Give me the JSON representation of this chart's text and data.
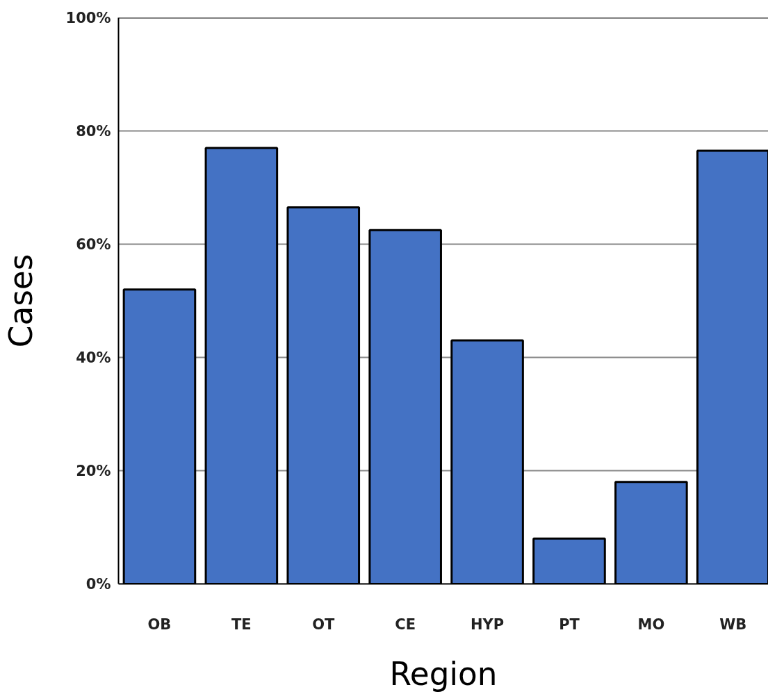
{
  "chart_data": {
    "type": "bar",
    "xlabel": "Region",
    "ylabel": "Cases",
    "categories": [
      "OB",
      "TE",
      "OT",
      "CE",
      "HYP",
      "PT",
      "MO",
      "WB"
    ],
    "values": [
      52,
      77,
      66.5,
      62.5,
      43,
      8,
      18,
      76.5
    ],
    "color": "#4472c4",
    "ylim": [
      0,
      100
    ],
    "yticks": [
      {
        "value": 0,
        "label": "0%"
      },
      {
        "value": 20,
        "label": "20%"
      },
      {
        "value": 40,
        "label": "40%"
      },
      {
        "value": 60,
        "label": "60%"
      },
      {
        "value": 80,
        "label": "80%"
      },
      {
        "value": 100,
        "label": "100%"
      }
    ],
    "grid": "y"
  }
}
